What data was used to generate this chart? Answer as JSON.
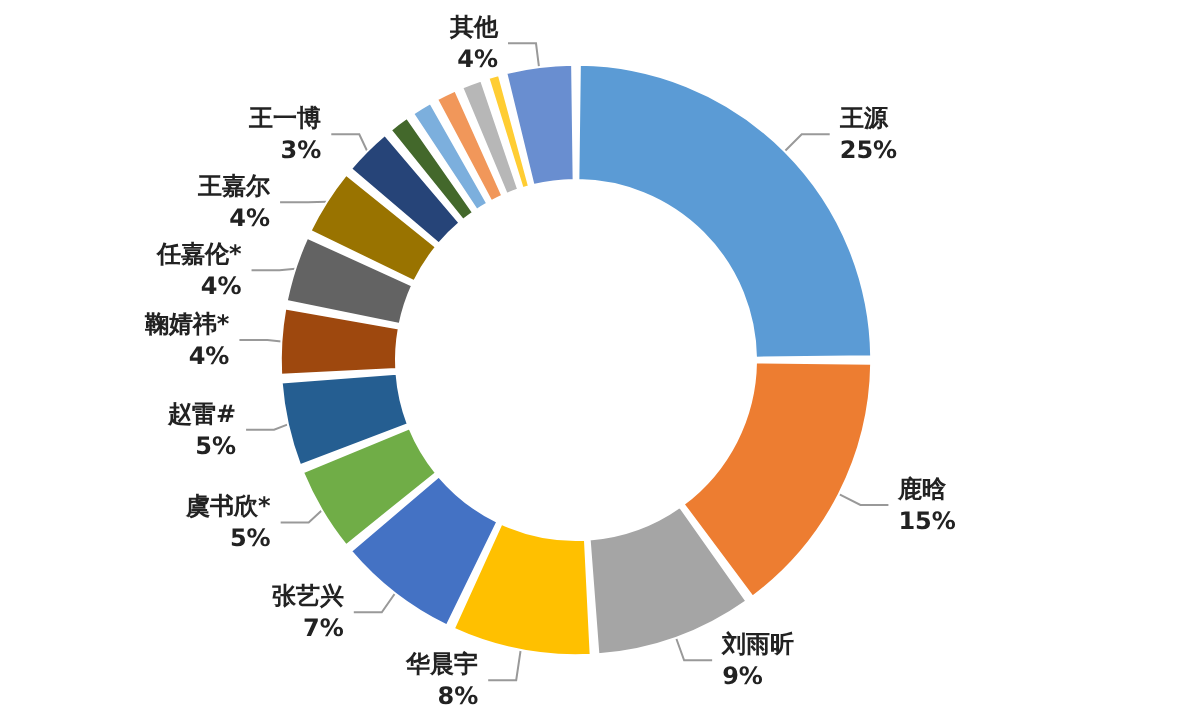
{
  "chart_data": {
    "type": "donut",
    "categories": [
      "王源",
      "鹿晗",
      "刘雨昕",
      "华晨宇",
      "张艺兴",
      "虞书欣*",
      "赵雷#",
      "鞠婧祎*",
      "任嘉伦*",
      "王嘉尔",
      "王一博",
      null,
      null,
      null,
      null,
      null,
      "其他"
    ],
    "values": [
      25,
      15,
      9,
      8,
      7,
      5,
      5,
      4,
      4,
      4,
      3,
      1.5,
      1.5,
      1.5,
      1.5,
      1,
      4
    ],
    "colors": [
      "#5b9bd5",
      "#ed7d31",
      "#a5a5a5",
      "#ffc000",
      "#4472c4",
      "#70ad47",
      "#255e91",
      "#9e480e",
      "#636363",
      "#997300",
      "#264478",
      "#43682b",
      "#7cafdd",
      "#f1975a",
      "#b7b7b7",
      "#ffcd33",
      "#698ed0"
    ],
    "value_labels": [
      "25%",
      "15%",
      "9%",
      "8%",
      "7%",
      "5%",
      "5%",
      "4%",
      "4%",
      "4%",
      "3%",
      null,
      null,
      null,
      null,
      null,
      "4%"
    ],
    "legend": false
  }
}
